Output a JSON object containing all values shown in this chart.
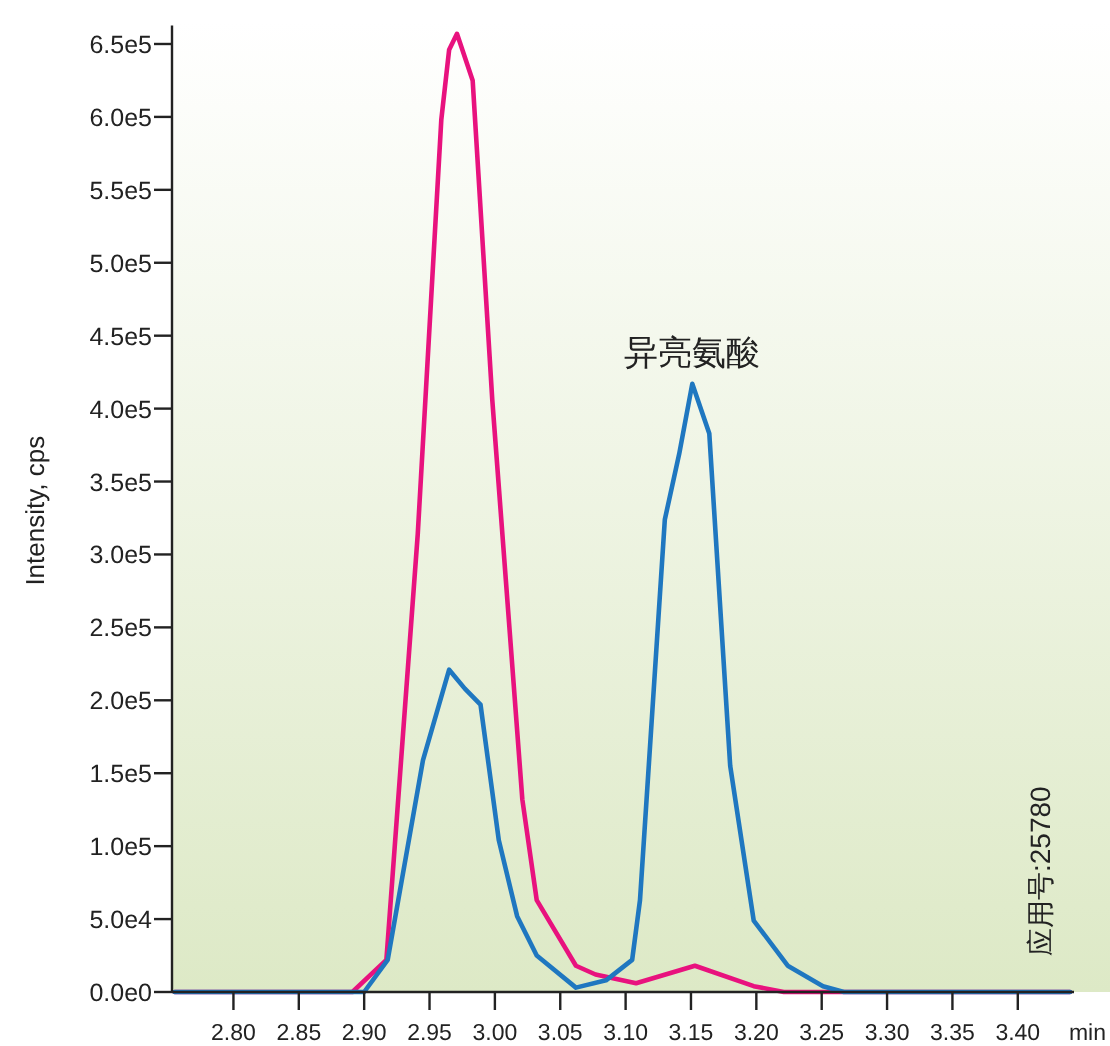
{
  "chart_data": {
    "type": "line",
    "ylabel": "Intensity, cps",
    "xlabel": "min",
    "xlim": [
      2.753,
      3.443
    ],
    "ylim": [
      0,
      660000
    ],
    "xticks": [
      {
        "value": 2.8,
        "label": "2.80"
      },
      2.85,
      {
        "value": 2.9,
        "label": "2.90"
      },
      2.95,
      {
        "value": 3.0,
        "label": "3.00"
      },
      3.05,
      {
        "value": 3.1,
        "label": "3.10"
      },
      3.15,
      {
        "value": 3.2,
        "label": "3.20"
      },
      3.25,
      {
        "value": 3.3,
        "label": "3.30"
      },
      3.35,
      {
        "value": 3.4,
        "label": "3.40"
      }
    ],
    "yticks": [
      {
        "value": 0,
        "label": "0.0e0"
      },
      {
        "value": 50000,
        "label": "5.0e4"
      },
      {
        "value": 100000,
        "label": "1.0e5"
      },
      {
        "value": 150000,
        "label": "1.5e5"
      },
      {
        "value": 200000,
        "label": "2.0e5"
      },
      {
        "value": 250000,
        "label": "2.5e5"
      },
      {
        "value": 300000,
        "label": "3.0e5"
      },
      {
        "value": 350000,
        "label": "3.5e5"
      },
      {
        "value": 400000,
        "label": "4.0e5"
      },
      {
        "value": 450000,
        "label": "4.5e5"
      },
      {
        "value": 500000,
        "label": "5.0e5"
      },
      {
        "value": 550000,
        "label": "5.5e5"
      },
      {
        "value": 600000,
        "label": "6.0e5"
      },
      {
        "value": 650000,
        "label": "6.5e5"
      }
    ],
    "grid": false,
    "marker": "none",
    "line_style": "solid",
    "series": [
      {
        "color": "#e8127e",
        "x": [
          2.755,
          2.891,
          2.917,
          2.941,
          2.959,
          2.965,
          2.971,
          2.983,
          2.998,
          3.021,
          3.032,
          3.062,
          3.077,
          3.108,
          3.153,
          3.198,
          3.221,
          3.44
        ],
        "values": [
          0,
          0,
          22000,
          314000,
          598000,
          646000,
          657000,
          625000,
          406000,
          132000,
          63000,
          18000,
          12000,
          6000,
          18000,
          4000,
          0,
          0
        ]
      },
      {
        "color": "#1f77c0",
        "x": [
          2.755,
          2.9,
          2.918,
          2.945,
          2.965,
          2.977,
          2.989,
          3.003,
          3.017,
          3.032,
          3.062,
          3.085,
          3.105,
          3.111,
          3.13,
          3.141,
          3.151,
          3.164,
          3.18,
          3.198,
          3.224,
          3.251,
          3.267,
          3.44
        ],
        "values": [
          0,
          0,
          22000,
          159000,
          221000,
          208000,
          197000,
          104000,
          52000,
          25000,
          3000,
          8000,
          22000,
          63000,
          324000,
          369000,
          417000,
          383000,
          155000,
          49000,
          18000,
          4000,
          0,
          0
        ]
      }
    ],
    "annotations": [
      "异亮氨酸",
      "应用号:25780"
    ]
  }
}
